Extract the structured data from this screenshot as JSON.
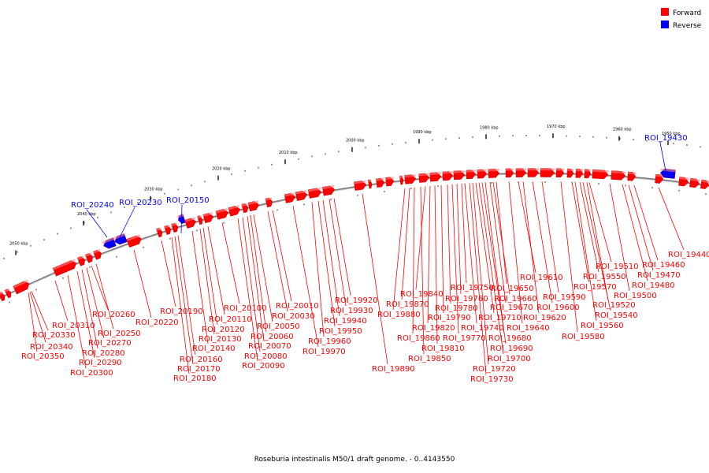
{
  "caption": "Roseburia intestinalis M50/1 draft genome. - 0..4143550",
  "legend": [
    {
      "label": "Forward",
      "color": "#ff0000"
    },
    {
      "label": "Reverse",
      "color": "#0000ff"
    }
  ],
  "colors": {
    "forward": "#ff0000",
    "reverse": "#0000ff",
    "backbone": "#7a7a7a"
  },
  "scale_ticks": [
    "1950 kbp",
    "1960 kbp",
    "1970 kbp",
    "1980 kbp",
    "1990 kbp",
    "2000 kbp",
    "2010 kbp",
    "2020 kbp",
    "2030 kbp",
    "2040 kbp",
    "2050 kbp"
  ],
  "reverse_labels": [
    "ROI_19430",
    "ROI_20150",
    "ROI_20230",
    "ROI_20240"
  ],
  "forward_labels": [
    "ROI_19440",
    "ROI_19460",
    "ROI_19470",
    "ROI_19480",
    "ROI_19500",
    "ROI_19510",
    "ROI_19520",
    "ROI_19540",
    "ROI_19550",
    "ROI_19560",
    "ROI_19570",
    "ROI_19580",
    "ROI_19590",
    "ROI_19600",
    "ROI_19610",
    "ROI_19620",
    "ROI_19640",
    "ROI_19650",
    "ROI_19660",
    "ROI_19670",
    "ROI_19680",
    "ROI_19690",
    "ROI_19700",
    "ROI_19710",
    "ROI_19720",
    "ROI_19730",
    "ROI_19740",
    "ROI_19750",
    "ROI_19760",
    "ROI_19770",
    "ROI_19780",
    "ROI_19790",
    "ROI_19810",
    "ROI_19820",
    "ROI_19840",
    "ROI_19850",
    "ROI_19860",
    "ROI_19870",
    "ROI_19880",
    "ROI_19890",
    "ROI_19920",
    "ROI_19930",
    "ROI_19940",
    "ROI_19950",
    "ROI_19960",
    "ROI_19970",
    "ROI_20010",
    "ROI_20030",
    "ROI_20050",
    "ROI_20060",
    "ROI_20070",
    "ROI_20080",
    "ROI_20090",
    "ROI_20100",
    "ROI_20110",
    "ROI_20120",
    "ROI_20130",
    "ROI_20140",
    "ROI_20160",
    "ROI_20170",
    "ROI_20180",
    "ROI_20190",
    "ROI_20220",
    "ROI_20250",
    "ROI_20260",
    "ROI_20270",
    "ROI_20280",
    "ROI_20290",
    "ROI_20300",
    "ROI_20310",
    "ROI_20330",
    "ROI_20340",
    "ROI_20350"
  ]
}
